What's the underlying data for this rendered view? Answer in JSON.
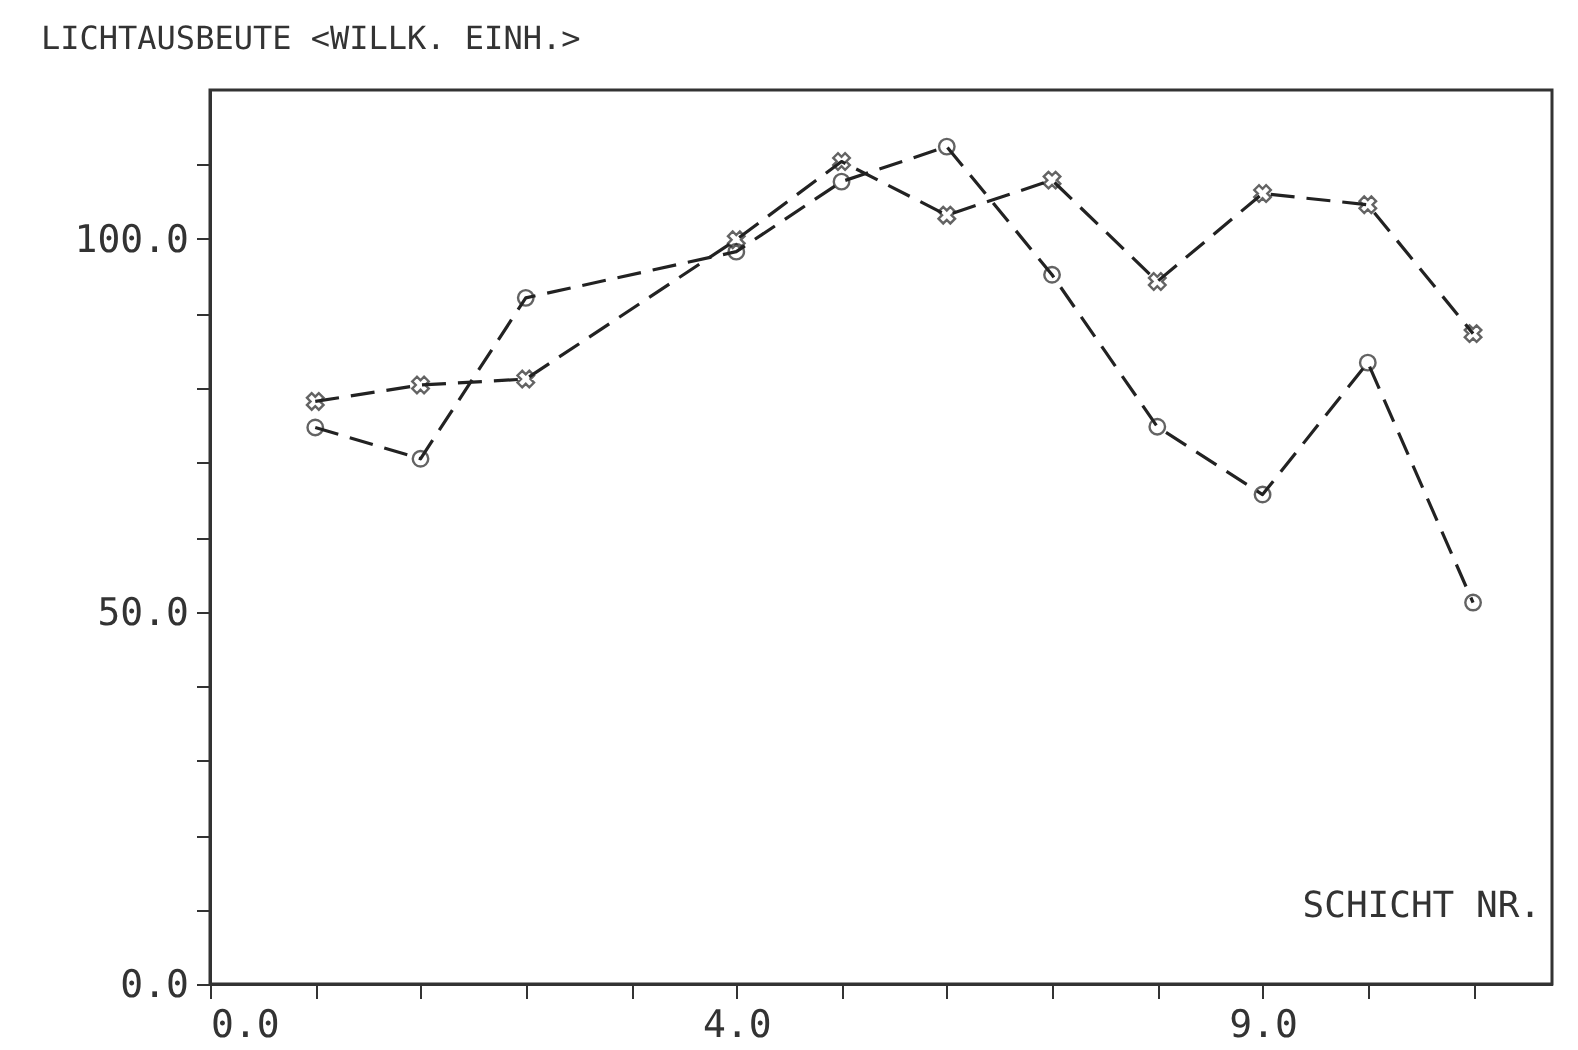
{
  "chart_data": {
    "type": "line",
    "ylabel": "LICHTAUSBEUTE <WILLK. EINH.>",
    "xlabel": "SCHICHT NR.",
    "categories": [
      "0.0",
      null,
      null,
      null,
      null,
      "4.0",
      null,
      null,
      null,
      null,
      "9.0",
      null,
      null
    ],
    "ylim": [
      0,
      120
    ],
    "yticks": [
      {
        "value": 0,
        "label": "0.0"
      },
      {
        "value": 10,
        "label": null
      },
      {
        "value": 20,
        "label": null
      },
      {
        "value": 30,
        "label": null
      },
      {
        "value": 40,
        "label": null
      },
      {
        "value": 50,
        "label": "50.0"
      },
      {
        "value": 60,
        "label": null
      },
      {
        "value": 70,
        "label": null
      },
      {
        "value": 80,
        "label": null
      },
      {
        "value": 90,
        "label": null
      },
      {
        "value": 100,
        "label": "100.0"
      },
      {
        "value": 110,
        "label": null
      }
    ],
    "grid": false,
    "series": [
      {
        "color": "#222222",
        "marker": "cross",
        "line_style": "dashed",
        "values": [
          null,
          78.2,
          80.4,
          81.2,
          null,
          99.9,
          110.4,
          103.2,
          107.9,
          94.3,
          106.1,
          104.6,
          87.3
        ]
      },
      {
        "color": "#222222",
        "marker": "circle",
        "line_style": "dashed",
        "values": [
          null,
          74.7,
          70.5,
          92.1,
          null,
          98.3,
          107.7,
          112.4,
          95.2,
          74.8,
          65.7,
          83.4,
          51.2
        ]
      }
    ]
  }
}
